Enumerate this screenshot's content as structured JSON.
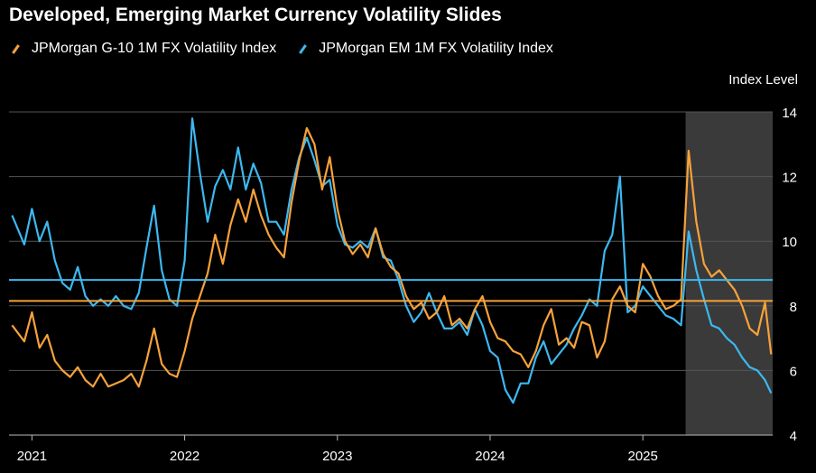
{
  "title": "Developed, Emerging Market Currency Volatility Slides",
  "chart_data": {
    "type": "line",
    "title": "Developed, Emerging Market Currency Volatility Slides",
    "ylabel": "Index Level",
    "ylim": [
      4,
      14
    ],
    "yticks": [
      4,
      6,
      8,
      10,
      12,
      14
    ],
    "xlim": [
      2020.85,
      2025.85
    ],
    "xticks": [
      2021,
      2022,
      2023,
      2024,
      2025
    ],
    "xtick_labels": [
      "2021",
      "2022",
      "2023",
      "2024",
      "2025"
    ],
    "grid": true,
    "legend_position": "top-left",
    "shaded_region": [
      2025.28,
      2025.85
    ],
    "series": [
      {
        "name": "JPMorgan G-10 1M FX Volatility Index",
        "color": "#f7a23a",
        "average": 8.15,
        "x": [
          2020.87,
          2020.95,
          2021.0,
          2021.05,
          2021.1,
          2021.15,
          2021.2,
          2021.25,
          2021.3,
          2021.35,
          2021.4,
          2021.45,
          2021.5,
          2021.55,
          2021.6,
          2021.65,
          2021.7,
          2021.75,
          2021.8,
          2021.85,
          2021.9,
          2021.95,
          2022.0,
          2022.05,
          2022.1,
          2022.15,
          2022.2,
          2022.25,
          2022.3,
          2022.35,
          2022.4,
          2022.45,
          2022.5,
          2022.55,
          2022.6,
          2022.65,
          2022.7,
          2022.75,
          2022.8,
          2022.85,
          2022.9,
          2022.95,
          2023.0,
          2023.05,
          2023.1,
          2023.15,
          2023.2,
          2023.25,
          2023.3,
          2023.35,
          2023.4,
          2023.45,
          2023.5,
          2023.55,
          2023.6,
          2023.65,
          2023.7,
          2023.75,
          2023.8,
          2023.85,
          2023.9,
          2023.95,
          2024.0,
          2024.05,
          2024.1,
          2024.15,
          2024.2,
          2024.25,
          2024.3,
          2024.35,
          2024.4,
          2024.45,
          2024.5,
          2024.55,
          2024.6,
          2024.65,
          2024.7,
          2024.75,
          2024.8,
          2024.85,
          2024.9,
          2024.95,
          2025.0,
          2025.05,
          2025.1,
          2025.15,
          2025.2,
          2025.25,
          2025.3,
          2025.35,
          2025.4,
          2025.45,
          2025.5,
          2025.55,
          2025.6,
          2025.65,
          2025.7,
          2025.75,
          2025.8,
          2025.84
        ],
        "values": [
          7.4,
          6.9,
          7.8,
          6.7,
          7.1,
          6.3,
          6.0,
          5.8,
          6.1,
          5.7,
          5.5,
          5.9,
          5.5,
          5.6,
          5.7,
          5.9,
          5.5,
          6.3,
          7.3,
          6.2,
          5.9,
          5.8,
          6.6,
          7.6,
          8.3,
          9.0,
          10.2,
          9.3,
          10.5,
          11.3,
          10.6,
          11.6,
          10.8,
          10.2,
          9.8,
          9.5,
          11.2,
          12.5,
          13.5,
          13.0,
          11.6,
          12.6,
          11.0,
          10.0,
          9.6,
          9.9,
          9.5,
          10.4,
          9.6,
          9.2,
          9.0,
          8.3,
          7.9,
          8.1,
          7.6,
          7.8,
          8.3,
          7.4,
          7.6,
          7.3,
          7.9,
          8.3,
          7.5,
          7.0,
          6.9,
          6.6,
          6.5,
          6.1,
          6.6,
          7.4,
          7.9,
          6.8,
          7.0,
          6.7,
          7.5,
          7.4,
          6.4,
          6.9,
          8.2,
          8.6,
          8.0,
          7.8,
          9.3,
          8.9,
          8.3,
          7.9,
          8.0,
          8.2,
          12.8,
          10.6,
          9.3,
          8.9,
          9.1,
          8.8,
          8.5,
          8.0,
          7.3,
          7.1,
          8.1,
          6.5
        ]
      },
      {
        "name": "JPMorgan EM 1M FX Volatility Index",
        "color": "#3cb8f0",
        "average": 8.8,
        "x": [
          2020.87,
          2020.95,
          2021.0,
          2021.05,
          2021.1,
          2021.15,
          2021.2,
          2021.25,
          2021.3,
          2021.35,
          2021.4,
          2021.45,
          2021.5,
          2021.55,
          2021.6,
          2021.65,
          2021.7,
          2021.75,
          2021.8,
          2021.85,
          2021.9,
          2021.95,
          2022.0,
          2022.05,
          2022.1,
          2022.15,
          2022.2,
          2022.25,
          2022.3,
          2022.35,
          2022.4,
          2022.45,
          2022.5,
          2022.55,
          2022.6,
          2022.65,
          2022.7,
          2022.75,
          2022.8,
          2022.85,
          2022.9,
          2022.95,
          2023.0,
          2023.05,
          2023.1,
          2023.15,
          2023.2,
          2023.25,
          2023.3,
          2023.35,
          2023.4,
          2023.45,
          2023.5,
          2023.55,
          2023.6,
          2023.65,
          2023.7,
          2023.75,
          2023.8,
          2023.85,
          2023.9,
          2023.95,
          2024.0,
          2024.05,
          2024.1,
          2024.15,
          2024.2,
          2024.25,
          2024.3,
          2024.35,
          2024.4,
          2024.45,
          2024.5,
          2024.55,
          2024.6,
          2024.65,
          2024.7,
          2024.75,
          2024.8,
          2024.85,
          2024.9,
          2024.95,
          2025.0,
          2025.05,
          2025.1,
          2025.15,
          2025.2,
          2025.25,
          2025.3,
          2025.35,
          2025.4,
          2025.45,
          2025.5,
          2025.55,
          2025.6,
          2025.65,
          2025.7,
          2025.75,
          2025.8,
          2025.84
        ],
        "values": [
          10.8,
          9.9,
          11.0,
          10.0,
          10.6,
          9.4,
          8.7,
          8.5,
          9.2,
          8.3,
          8.0,
          8.2,
          8.0,
          8.3,
          8.0,
          7.9,
          8.4,
          9.8,
          11.1,
          9.1,
          8.2,
          8.0,
          9.4,
          13.8,
          12.1,
          10.6,
          11.7,
          12.2,
          11.6,
          12.9,
          11.6,
          12.4,
          11.8,
          10.6,
          10.6,
          10.2,
          11.6,
          12.6,
          13.2,
          12.5,
          11.7,
          11.9,
          10.5,
          9.9,
          9.8,
          10.0,
          9.8,
          10.4,
          9.5,
          9.4,
          8.8,
          8.0,
          7.5,
          7.8,
          8.4,
          7.8,
          7.3,
          7.3,
          7.5,
          7.1,
          7.9,
          7.4,
          6.6,
          6.4,
          5.4,
          5.0,
          5.6,
          5.6,
          6.4,
          6.9,
          6.2,
          6.5,
          6.8,
          7.3,
          7.7,
          8.2,
          8.0,
          9.7,
          10.2,
          12.0,
          7.8,
          8.0,
          8.6,
          8.3,
          8.0,
          7.7,
          7.6,
          7.4,
          10.3,
          9.1,
          8.2,
          7.4,
          7.3,
          7.0,
          6.8,
          6.4,
          6.1,
          6.0,
          5.7,
          5.3
        ]
      }
    ]
  }
}
